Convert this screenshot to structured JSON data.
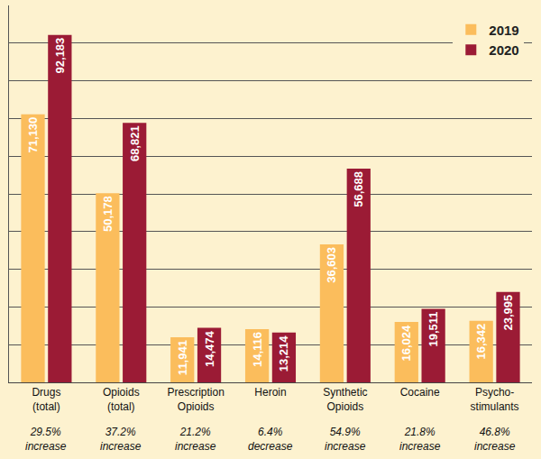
{
  "chart_data": {
    "type": "bar",
    "categories": [
      "Drugs\n(total)",
      "Opioids\n(total)",
      "Prescription\nOpioids",
      "Heroin",
      "Synthetic\nOpioids",
      "Cocaine",
      "Psycho-\nstimulants"
    ],
    "series": [
      {
        "name": "2019",
        "color": "#fbbd5c",
        "values": [
          71130,
          50178,
          11941,
          14116,
          36603,
          16024,
          16342
        ],
        "value_labels": [
          "71,130",
          "50,178",
          "11,941",
          "14,116",
          "36,603",
          "16,024",
          "16,342"
        ]
      },
      {
        "name": "2020",
        "color": "#9b1b35",
        "values": [
          92183,
          68821,
          14474,
          13214,
          56688,
          19511,
          23995
        ],
        "value_labels": [
          "92,183",
          "68,821",
          "14,474",
          "13,214",
          "56,688",
          "19,511",
          "23,995"
        ]
      }
    ],
    "annotations": [
      "29.5% increase",
      "37.2% increase",
      "21.2% increase",
      "6.4% decrease",
      "54.9% increase",
      "21.8% increase",
      "46.8% increase"
    ],
    "ylim": [
      0,
      100000
    ],
    "yticks": [
      0,
      10000,
      20000,
      30000,
      40000,
      50000,
      60000,
      70000,
      80000,
      90000,
      100000
    ],
    "grid": true,
    "legend": "top right",
    "data_labels": true,
    "tick_labels": "x"
  }
}
